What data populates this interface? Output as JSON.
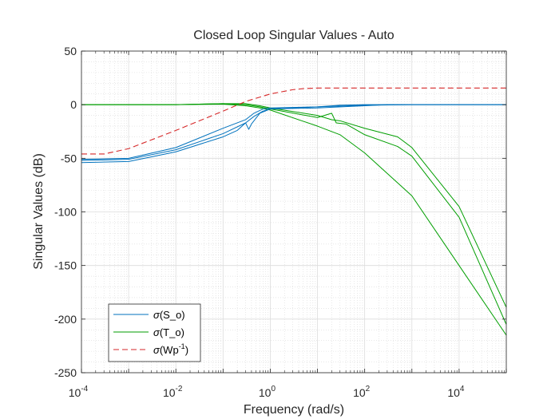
{
  "chart_data": {
    "type": "line",
    "title": "Closed Loop Singular Values - Auto",
    "xlabel": "Frequency (rad/s)",
    "ylabel": "Singular Values (dB)",
    "xscale": "log",
    "xlim": [
      0.0001,
      100000
    ],
    "ylim": [
      -250,
      50
    ],
    "x_ticks": [
      {
        "value": 0.0001,
        "base": "10",
        "exp": "-4"
      },
      {
        "value": 0.01,
        "base": "10",
        "exp": "-2"
      },
      {
        "value": 1,
        "base": "10",
        "exp": "0"
      },
      {
        "value": 100,
        "base": "10",
        "exp": "2"
      },
      {
        "value": 10000,
        "base": "10",
        "exp": "4"
      }
    ],
    "y_ticks": [
      50,
      0,
      -50,
      -100,
      -150,
      -200,
      -250
    ],
    "grid": true,
    "minor_grid": true,
    "legend_position": "bottom-left",
    "legend": [
      {
        "sigma": "σ",
        "text": "(S_o)",
        "sup": ""
      },
      {
        "sigma": "σ",
        "text": "(T_o)",
        "sup": ""
      },
      {
        "sigma": "σ",
        "text": "(Wp",
        "sup": "-1",
        "tail": ")"
      }
    ],
    "series": [
      {
        "name": "σ(S_o) 1",
        "group": "S",
        "color": "#0072BD",
        "dash": "solid",
        "points": [
          [
            0.0001,
            -51
          ],
          [
            0.001,
            -50
          ],
          [
            0.01,
            -40
          ],
          [
            0.1,
            -22
          ],
          [
            0.3,
            -14
          ],
          [
            0.45,
            -8
          ],
          [
            0.7,
            -4
          ],
          [
            1,
            -3
          ],
          [
            10,
            -2
          ],
          [
            30,
            -0.5
          ],
          [
            100,
            0
          ],
          [
            1000,
            0
          ],
          [
            100000,
            0
          ]
        ]
      },
      {
        "name": "σ(S_o) 2",
        "group": "S",
        "color": "#0072BD",
        "dash": "solid",
        "points": [
          [
            0.0001,
            -52
          ],
          [
            0.001,
            -51
          ],
          [
            0.01,
            -42
          ],
          [
            0.1,
            -27
          ],
          [
            0.3,
            -17
          ],
          [
            0.45,
            -11
          ],
          [
            0.7,
            -6
          ],
          [
            1,
            -4
          ],
          [
            10,
            -3
          ],
          [
            100,
            -1
          ],
          [
            300,
            0
          ],
          [
            1000,
            0
          ],
          [
            100000,
            0
          ]
        ]
      },
      {
        "name": "σ(S_o) 3",
        "group": "S",
        "color": "#0072BD",
        "dash": "solid",
        "points": [
          [
            0.0001,
            -54
          ],
          [
            0.001,
            -53
          ],
          [
            0.01,
            -44
          ],
          [
            0.1,
            -30
          ],
          [
            0.2,
            -24
          ],
          [
            0.3,
            -17
          ],
          [
            0.35,
            -23
          ],
          [
            0.4,
            -18
          ],
          [
            0.6,
            -8
          ],
          [
            1,
            -4
          ],
          [
            10,
            -2
          ],
          [
            100,
            -0.5
          ],
          [
            1000,
            0
          ],
          [
            100000,
            0
          ]
        ]
      },
      {
        "name": "σ(T_o) 1",
        "group": "T",
        "color": "#009E00",
        "dash": "solid",
        "points": [
          [
            0.0001,
            0
          ],
          [
            0.01,
            0
          ],
          [
            0.1,
            1
          ],
          [
            0.3,
            1
          ],
          [
            0.6,
            -1
          ],
          [
            1,
            -3
          ],
          [
            10,
            -10
          ],
          [
            20,
            -14
          ],
          [
            30,
            -15
          ],
          [
            100,
            -22
          ],
          [
            500,
            -30
          ],
          [
            1000,
            -40
          ],
          [
            10000,
            -95
          ],
          [
            100000,
            -189
          ]
        ]
      },
      {
        "name": "σ(T_o) 2",
        "group": "T",
        "color": "#009E00",
        "dash": "solid",
        "points": [
          [
            0.0001,
            0
          ],
          [
            0.01,
            0
          ],
          [
            0.1,
            1
          ],
          [
            0.3,
            0
          ],
          [
            0.6,
            -2
          ],
          [
            1,
            -4
          ],
          [
            10,
            -12
          ],
          [
            20,
            -8
          ],
          [
            25,
            -17
          ],
          [
            40,
            -18
          ],
          [
            100,
            -28
          ],
          [
            500,
            -39
          ],
          [
            1000,
            -48
          ],
          [
            10000,
            -105
          ],
          [
            100000,
            -205
          ]
        ]
      },
      {
        "name": "σ(T_o) 3",
        "group": "T",
        "color": "#009E00",
        "dash": "solid",
        "points": [
          [
            0.0001,
            0
          ],
          [
            0.01,
            0
          ],
          [
            0.1,
            0.5
          ],
          [
            0.3,
            -1
          ],
          [
            0.6,
            -3
          ],
          [
            1,
            -5
          ],
          [
            10,
            -20
          ],
          [
            30,
            -28
          ],
          [
            100,
            -45
          ],
          [
            1000,
            -85
          ],
          [
            10000,
            -150
          ],
          [
            100000,
            -215
          ]
        ]
      },
      {
        "name": "σ(Wp^-1)",
        "group": "W",
        "color": "#D62728",
        "dash": "dashed",
        "points": [
          [
            0.0001,
            -46
          ],
          [
            0.0003,
            -46
          ],
          [
            0.001,
            -41
          ],
          [
            0.01,
            -24
          ],
          [
            0.1,
            -6
          ],
          [
            0.3,
            3
          ],
          [
            1,
            10
          ],
          [
            3,
            14
          ],
          [
            5,
            15
          ],
          [
            10,
            15.5
          ],
          [
            100000,
            15.5
          ]
        ]
      }
    ]
  }
}
